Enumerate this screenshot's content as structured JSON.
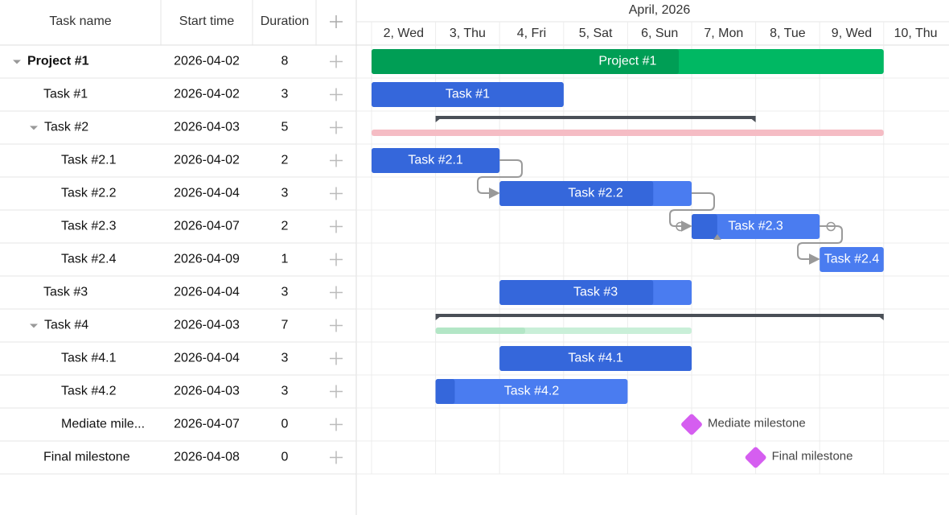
{
  "grid": {
    "columns": [
      "Task name",
      "Start time",
      "Duration"
    ]
  },
  "timeline": {
    "month": "April, 2026",
    "days": [
      "2, Wed",
      "3, Thu",
      "4, Fri",
      "5, Sat",
      "6, Sun",
      "7, Mon",
      "8, Tue",
      "9, Wed",
      "10, Thu"
    ]
  },
  "tasks": [
    {
      "name": "Project #1",
      "start": "2026-04-02",
      "duration": 8,
      "bar_label": "Project #1"
    },
    {
      "name": "Task #1",
      "start": "2026-04-02",
      "duration": 3,
      "bar_label": "Task #1"
    },
    {
      "name": "Task #2",
      "start": "2026-04-03",
      "duration": 5
    },
    {
      "name": "Task #2.1",
      "start": "2026-04-02",
      "duration": 2,
      "bar_label": "Task #2.1"
    },
    {
      "name": "Task #2.2",
      "start": "2026-04-04",
      "duration": 3,
      "bar_label": "Task #2.2"
    },
    {
      "name": "Task #2.3",
      "start": "2026-04-07",
      "duration": 2,
      "bar_label": "Task #2.3"
    },
    {
      "name": "Task #2.4",
      "start": "2026-04-09",
      "duration": 1,
      "bar_label": "Task #2.4"
    },
    {
      "name": "Task #3",
      "start": "2026-04-04",
      "duration": 3,
      "bar_label": "Task #3"
    },
    {
      "name": "Task #4",
      "start": "2026-04-03",
      "duration": 7
    },
    {
      "name": "Task #4.1",
      "start": "2026-04-04",
      "duration": 3,
      "bar_label": "Task #4.1"
    },
    {
      "name": "Task #4.2",
      "start": "2026-04-03",
      "duration": 3,
      "bar_label": "Task #4.2"
    },
    {
      "name": "Mediate mile...",
      "start": "2026-04-07",
      "duration": 0,
      "bar_label": "Mediate milestone"
    },
    {
      "name": "Final milestone",
      "start": "2026-04-08",
      "duration": 0,
      "bar_label": "Final milestone"
    }
  ]
}
